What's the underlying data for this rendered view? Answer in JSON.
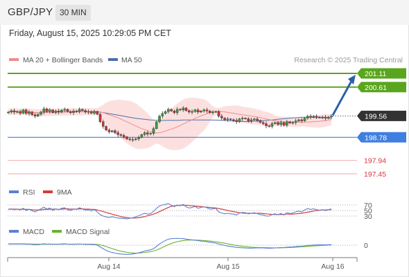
{
  "header": {
    "symbol": "GBP/JPY",
    "timeframe": "30 MIN",
    "datetime": "Friday, August 15, 2025 10:29:05 PM CET"
  },
  "legend": {
    "ma20": "MA 20 + Bollinger Bands",
    "ma50": "MA 50",
    "copyright": "Research © 2025 Trading Central",
    "rsi": "RSI",
    "rsi_ma": "9MA",
    "macd": "MACD",
    "macd_signal": "MACD Signal"
  },
  "colors": {
    "resistance": "#5aa51e",
    "support_line": "#3f7fe0",
    "support_minor": "#f3b8b8",
    "support_minor_label": "#d9363e",
    "current": "#333333",
    "arrow": "#2e5fa8",
    "bollinger": "#fbd5d5",
    "ma20": "#f08b8b",
    "ma50": "#4b6fa8",
    "candle_up": "#3b9a3b",
    "candle_down": "#cc3333",
    "rsi": "#5a7fd6",
    "rsi_ma": "#d43c3c",
    "macd": "#5a7fd6",
    "macd_signal": "#6ab22e"
  },
  "chart_data": [
    {
      "type": "candlestick",
      "title": "GBP/JPY",
      "x_ticks": [
        "Aug 14",
        "Aug 15",
        "Aug 16"
      ],
      "levels": [
        {
          "value": 201.11,
          "label": "201.11",
          "kind": "resistance"
        },
        {
          "value": 200.61,
          "label": "200.61",
          "kind": "resistance"
        },
        {
          "value": 199.56,
          "label": "199.56",
          "kind": "current"
        },
        {
          "value": 198.78,
          "label": "198.78",
          "kind": "support"
        },
        {
          "value": 197.94,
          "label": "197.94",
          "kind": "support-minor"
        },
        {
          "value": 197.45,
          "label": "197.45",
          "kind": "support-minor"
        }
      ],
      "close": [
        199.7,
        199.75,
        199.7,
        199.72,
        199.66,
        199.78,
        199.65,
        199.7,
        199.6,
        199.55,
        199.62,
        199.7,
        199.82,
        199.72,
        199.78,
        199.68,
        199.74,
        199.7,
        199.77,
        199.8,
        199.72,
        199.68,
        199.74,
        199.72,
        199.8,
        199.76,
        199.7,
        199.72,
        199.66,
        199.72,
        199.62,
        199.35,
        199.18,
        199.05,
        198.98,
        199.02,
        198.95,
        198.88,
        198.85,
        198.8,
        198.72,
        198.7,
        198.7,
        198.72,
        198.78,
        198.88,
        198.95,
        198.9,
        198.92,
        199.1,
        199.35,
        199.55,
        199.65,
        199.72,
        199.8,
        199.74,
        199.68,
        199.8,
        199.78,
        199.85,
        199.75,
        199.7,
        199.72,
        199.78,
        199.7,
        199.74,
        199.78,
        199.74,
        199.68,
        199.7,
        199.72,
        199.55,
        199.48,
        199.42,
        199.45,
        199.42,
        199.4,
        199.35,
        199.45,
        199.48,
        199.46,
        199.38,
        199.42,
        199.45,
        199.4,
        199.32,
        199.28,
        199.2,
        199.18,
        199.28,
        199.32,
        199.25,
        199.32,
        199.22,
        199.35,
        199.3,
        199.32,
        199.38,
        199.42,
        199.38,
        199.48,
        199.55,
        199.52,
        199.55,
        199.52,
        199.5,
        199.52,
        199.48,
        199.52,
        199.56
      ],
      "open_offset": "previous close",
      "ma20_label": "MA 20 + Bollinger Bands",
      "ma50_label": "MA 50"
    },
    {
      "type": "line",
      "title": "RSI",
      "y_ticks": [
        70,
        50,
        30
      ],
      "series": [
        {
          "name": "RSI",
          "values": [
            54,
            56,
            53,
            55,
            52,
            58,
            50,
            55,
            49,
            45,
            51,
            56,
            62,
            55,
            59,
            50,
            56,
            53,
            58,
            60,
            53,
            50,
            56,
            54,
            60,
            56,
            51,
            53,
            48,
            54,
            45,
            35,
            30,
            27,
            25,
            28,
            25,
            23,
            22,
            21,
            20,
            22,
            24,
            27,
            31,
            36,
            40,
            37,
            39,
            47,
            58,
            66,
            70,
            72,
            75,
            69,
            64,
            70,
            67,
            72,
            63,
            59,
            61,
            65,
            58,
            61,
            64,
            60,
            55,
            56,
            58,
            45,
            41,
            38,
            40,
            38,
            37,
            34,
            41,
            43,
            42,
            38,
            40,
            42,
            39,
            35,
            34,
            30,
            30,
            36,
            38,
            35,
            39,
            34,
            42,
            39,
            41,
            45,
            48,
            45,
            52,
            57,
            54,
            56,
            53,
            51,
            53,
            50,
            53,
            56
          ]
        },
        {
          "name": "9MA",
          "values": [
            55,
            55,
            55,
            55,
            54,
            55,
            54,
            54,
            53,
            52,
            52,
            52,
            54,
            54,
            55,
            55,
            55,
            54,
            55,
            56,
            56,
            55,
            55,
            55,
            56,
            56,
            55,
            55,
            54,
            54,
            52,
            49,
            46,
            43,
            40,
            37,
            34,
            31,
            28,
            26,
            24,
            23,
            23,
            23,
            24,
            26,
            28,
            31,
            34,
            37,
            41,
            46,
            51,
            56,
            61,
            65,
            67,
            68,
            69,
            69,
            69,
            68,
            67,
            66,
            65,
            64,
            63,
            62,
            61,
            60,
            59,
            57,
            55,
            53,
            50,
            48,
            46,
            44,
            42,
            41,
            40,
            40,
            40,
            40,
            40,
            40,
            39,
            38,
            37,
            36,
            36,
            36,
            36,
            36,
            37,
            37,
            37,
            38,
            39,
            40,
            42,
            44,
            46,
            48,
            50,
            51,
            52,
            52,
            53,
            53
          ]
        }
      ]
    },
    {
      "type": "line",
      "title": "MACD",
      "y_ticks": [
        0
      ],
      "series": [
        {
          "name": "MACD",
          "values": [
            0.02,
            0.025,
            0.02,
            0.022,
            0.018,
            0.025,
            0.015,
            0.018,
            0.012,
            0.008,
            0.01,
            0.015,
            0.022,
            0.018,
            0.02,
            0.015,
            0.018,
            0.016,
            0.02,
            0.022,
            0.018,
            0.015,
            0.018,
            0.017,
            0.02,
            0.018,
            0.014,
            0.015,
            0.01,
            0.012,
            0.0,
            -0.03,
            -0.06,
            -0.09,
            -0.11,
            -0.125,
            -0.135,
            -0.145,
            -0.15,
            -0.155,
            -0.158,
            -0.155,
            -0.15,
            -0.14,
            -0.13,
            -0.115,
            -0.1,
            -0.09,
            -0.08,
            -0.06,
            -0.02,
            0.02,
            0.05,
            0.08,
            0.1,
            0.11,
            0.112,
            0.115,
            0.112,
            0.11,
            0.102,
            0.095,
            0.09,
            0.085,
            0.078,
            0.07,
            0.065,
            0.058,
            0.05,
            0.042,
            0.035,
            0.02,
            0.008,
            -0.005,
            -0.015,
            -0.022,
            -0.03,
            -0.038,
            -0.042,
            -0.045,
            -0.048,
            -0.05,
            -0.05,
            -0.048,
            -0.046,
            -0.045,
            -0.046,
            -0.05,
            -0.052,
            -0.05,
            -0.047,
            -0.045,
            -0.042,
            -0.04,
            -0.035,
            -0.032,
            -0.03,
            -0.025,
            -0.02,
            -0.018,
            -0.012,
            -0.005,
            -0.002,
            0.002,
            0.004,
            0.005,
            0.006,
            0.006,
            0.007,
            0.008
          ]
        },
        {
          "name": "MACD Signal",
          "values": [
            0.02,
            0.021,
            0.021,
            0.021,
            0.021,
            0.021,
            0.02,
            0.02,
            0.019,
            0.017,
            0.016,
            0.016,
            0.017,
            0.017,
            0.017,
            0.017,
            0.017,
            0.017,
            0.017,
            0.018,
            0.018,
            0.017,
            0.017,
            0.017,
            0.018,
            0.018,
            0.017,
            0.017,
            0.016,
            0.015,
            0.012,
            0.004,
            -0.008,
            -0.024,
            -0.041,
            -0.058,
            -0.074,
            -0.089,
            -0.102,
            -0.113,
            -0.122,
            -0.129,
            -0.133,
            -0.135,
            -0.134,
            -0.13,
            -0.124,
            -0.117,
            -0.11,
            -0.1,
            -0.084,
            -0.063,
            -0.04,
            -0.016,
            0.008,
            0.028,
            0.045,
            0.059,
            0.07,
            0.078,
            0.083,
            0.086,
            0.087,
            0.087,
            0.085,
            0.082,
            0.078,
            0.074,
            0.069,
            0.063,
            0.057,
            0.05,
            0.042,
            0.033,
            0.023,
            0.013,
            0.004,
            -0.005,
            -0.013,
            -0.02,
            -0.026,
            -0.031,
            -0.035,
            -0.038,
            -0.04,
            -0.041,
            -0.042,
            -0.043,
            -0.045,
            -0.046,
            -0.046,
            -0.046,
            -0.045,
            -0.044,
            -0.042,
            -0.04,
            -0.038,
            -0.035,
            -0.032,
            -0.029,
            -0.025,
            -0.021,
            -0.017,
            -0.013,
            -0.01,
            -0.007,
            -0.004,
            -0.002,
            0.0,
            0.002
          ]
        }
      ]
    }
  ]
}
